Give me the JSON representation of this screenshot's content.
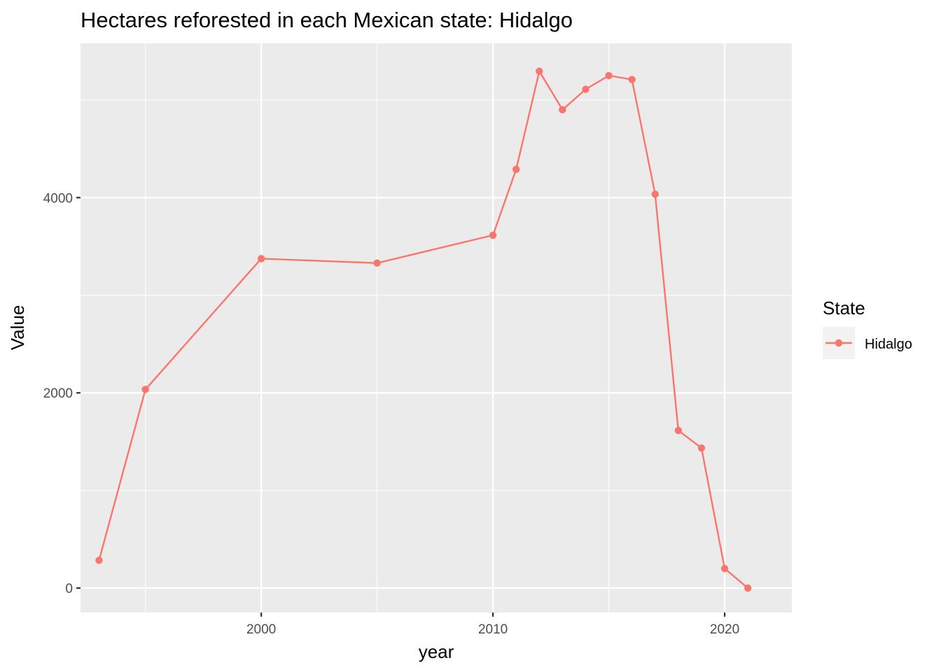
{
  "chart_data": {
    "type": "line",
    "title": "Hectares reforested in each Mexican state: Hidalgo",
    "xlabel": "year",
    "ylabel": "Value",
    "xlim": [
      1992.2,
      2022.9
    ],
    "ylim": [
      -250,
      5580
    ],
    "x_ticks": [
      2000,
      2010,
      2020
    ],
    "x_tick_labels": [
      "2000",
      "2010",
      "2020"
    ],
    "x_minor_ticks": [
      1995,
      2005,
      2015
    ],
    "y_ticks": [
      0,
      2000,
      4000
    ],
    "y_tick_labels": [
      "0",
      "2000",
      "4000"
    ],
    "y_minor_ticks": [
      1000,
      3000,
      5000
    ],
    "grid": true,
    "legend": {
      "title": "State",
      "position": "right"
    },
    "series": [
      {
        "name": "Hidalgo",
        "color": "#F8766D",
        "x": [
          1993,
          1995,
          2000,
          2005,
          2010,
          2011,
          2012,
          2013,
          2014,
          2015,
          2016,
          2017,
          2018,
          2019,
          2020,
          2021
        ],
        "values": [
          285,
          2035,
          3375,
          3330,
          3615,
          4290,
          5295,
          4900,
          5110,
          5250,
          5210,
          4035,
          1615,
          1435,
          200,
          0
        ]
      }
    ]
  }
}
